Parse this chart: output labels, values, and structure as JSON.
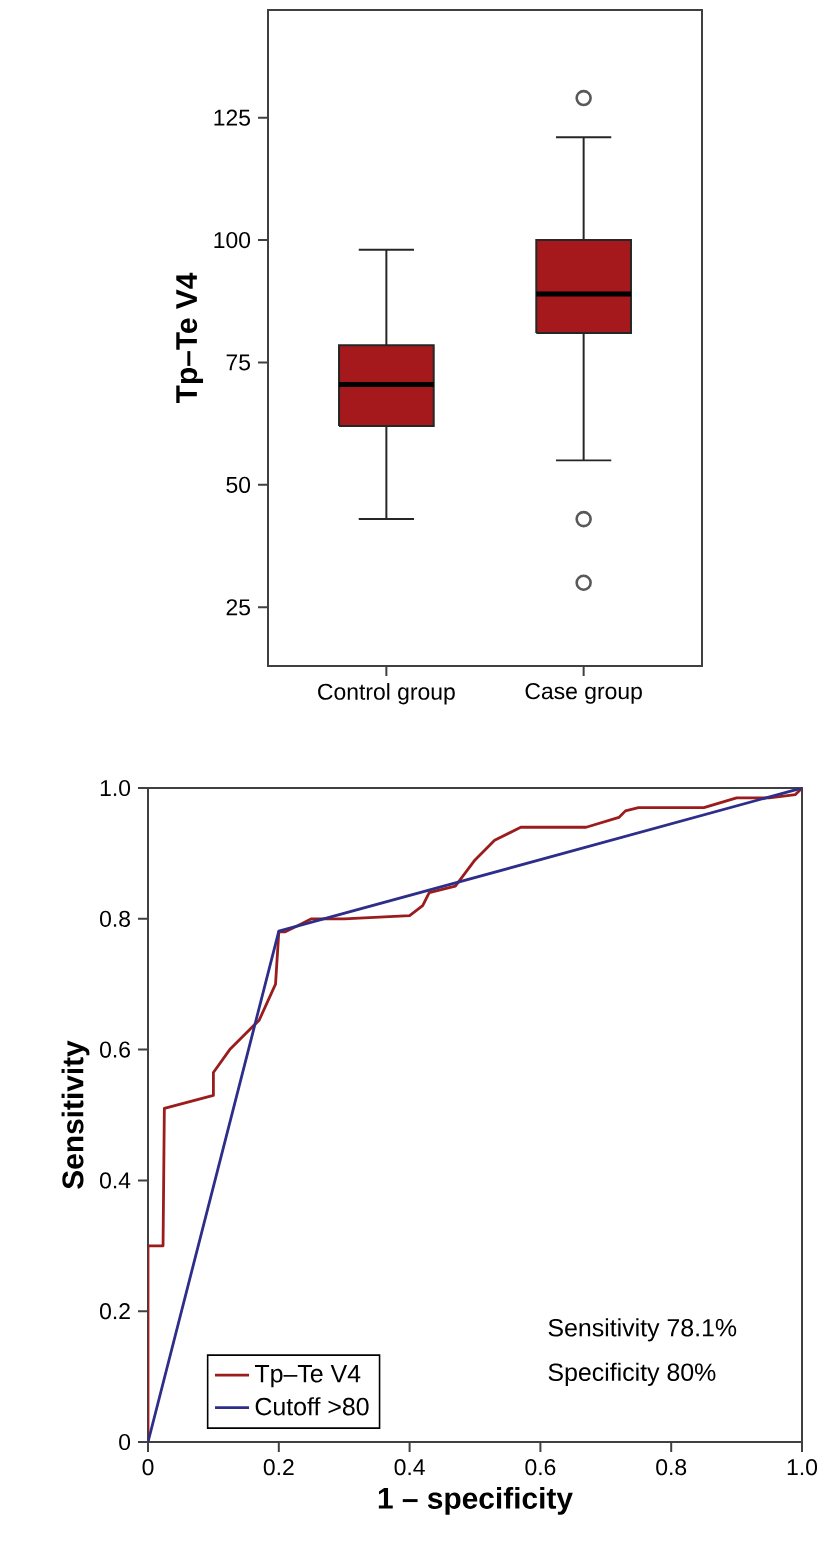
{
  "chart_data": [
    {
      "type": "box",
      "ylabel": "Tp–Te V4",
      "categories": [
        "Control group",
        "Case group"
      ],
      "color": "#a5191c",
      "boxes": [
        {
          "low": 43,
          "q1": 62,
          "median": 70.5,
          "q3": 78.5,
          "high": 98
        },
        {
          "low": 55,
          "q1": 81,
          "median": 89,
          "q3": 100,
          "high": 121,
          "outliers": [
            129,
            43,
            30
          ]
        }
      ],
      "ylim": [
        13,
        147
      ],
      "yticks": [
        25,
        50,
        75,
        100,
        125
      ],
      "grid": false
    },
    {
      "type": "line",
      "xlabel": "1 – specificity",
      "ylabel": "Sensitivity",
      "series": [
        {
          "name": "Tp–Te V4",
          "color": "#9b1c1c",
          "x": [
            0,
            0,
            0.023,
            0.025,
            0.1,
            0.1,
            0.125,
            0.17,
            0.195,
            0.2,
            0.21,
            0.25,
            0.3,
            0.4,
            0.42,
            0.43,
            0.47,
            0.5,
            0.53,
            0.57,
            0.67,
            0.72,
            0.73,
            0.75,
            0.85,
            0.9,
            0.95,
            0.99,
            1
          ],
          "values": [
            0,
            0.3,
            0.3,
            0.51,
            0.53,
            0.565,
            0.6,
            0.645,
            0.7,
            0.78,
            0.78,
            0.8,
            0.8,
            0.805,
            0.82,
            0.84,
            0.85,
            0.89,
            0.92,
            0.94,
            0.94,
            0.955,
            0.965,
            0.97,
            0.97,
            0.985,
            0.985,
            0.99,
            1
          ]
        },
        {
          "name": "Cutoff >80",
          "color": "#2e2e8a",
          "x": [
            0,
            0.2,
            1
          ],
          "values": [
            0,
            0.781,
            1
          ]
        }
      ],
      "xlim": [
        0,
        1
      ],
      "ylim": [
        0,
        1
      ],
      "xticks": [
        0,
        0.2,
        0.4,
        0.6,
        0.8,
        {
          "value": 1,
          "label": "1.0"
        }
      ],
      "yticks": [
        0,
        0.2,
        0.4,
        0.6,
        0.8,
        {
          "value": 1,
          "label": "1.0"
        }
      ],
      "annotations": [
        "Sensitivity 78.1%",
        "Specificity 80%"
      ],
      "legend": "bottom left",
      "grid": false,
      "marker": "none"
    }
  ]
}
